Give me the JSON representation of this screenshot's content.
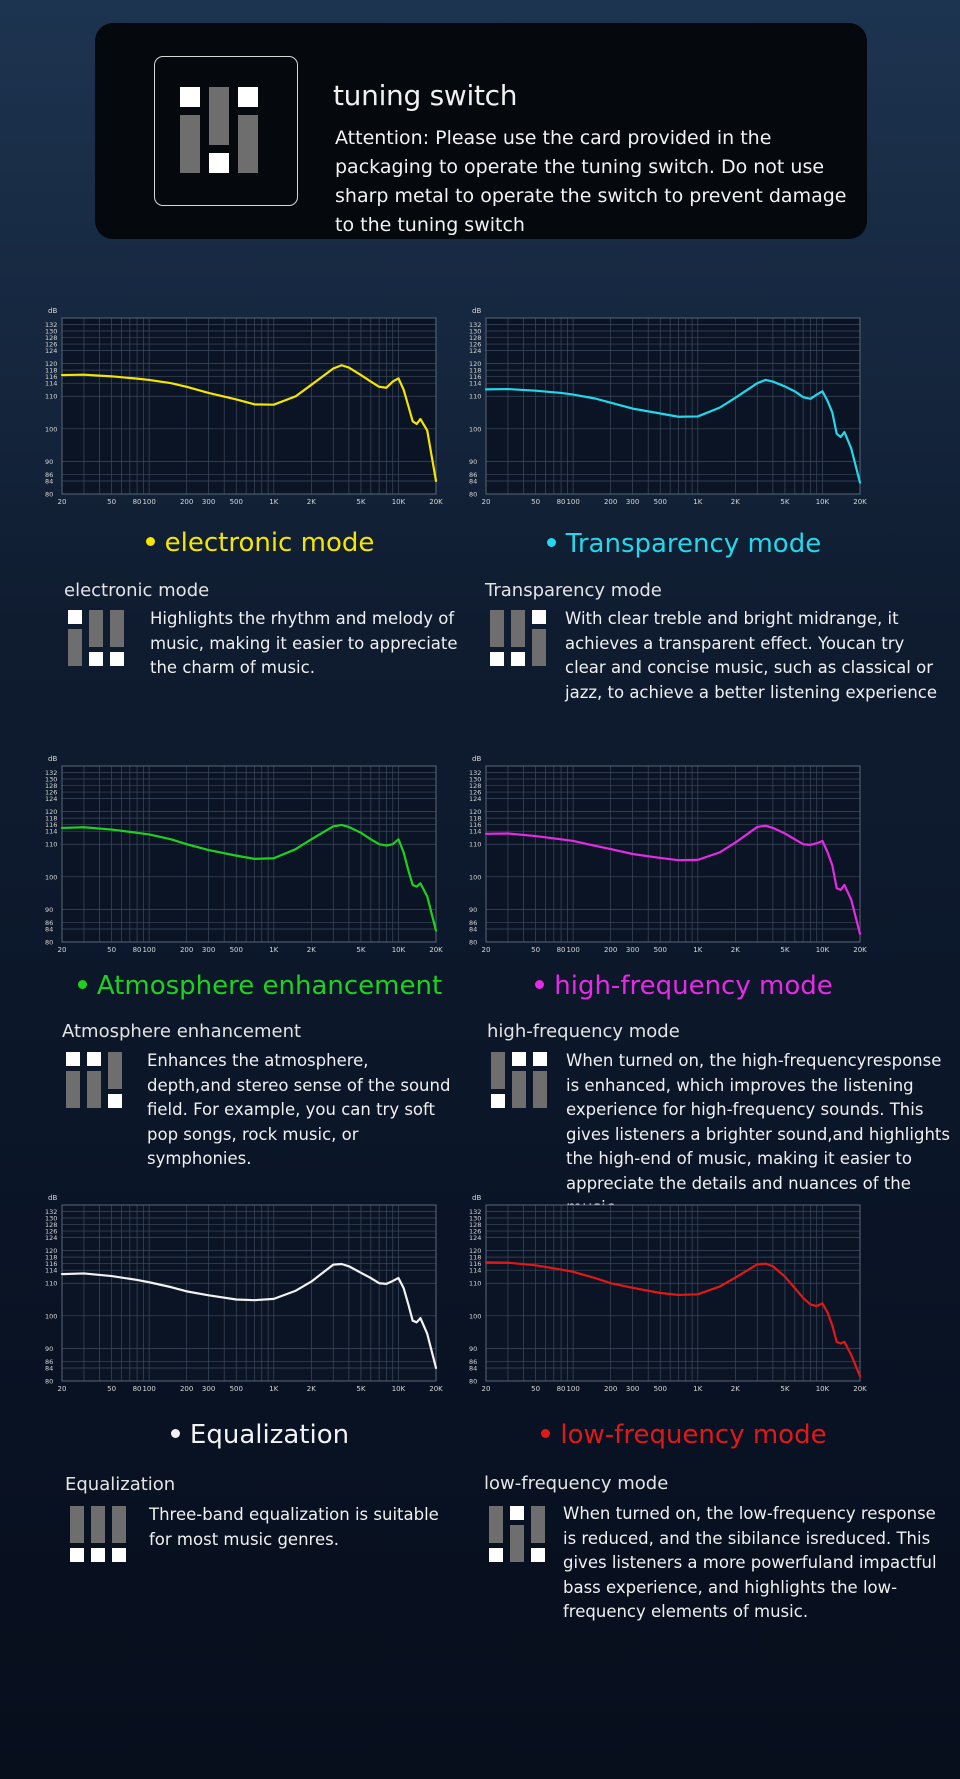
{
  "header": {
    "title": "tuning switch",
    "notice": "Attention: Please use the card provided in the packaging to operate the tuning switch. Do not use sharp metal to operate the switch to prevent damage to the tuning switch",
    "switch_states": [
      "up",
      "down",
      "up"
    ]
  },
  "axis": {
    "y_unit": "dB",
    "y_ticks": [
      "132",
      "130",
      "128",
      "126",
      "124",
      "120",
      "118",
      "116",
      "114",
      "110",
      "100",
      "90",
      "86",
      "84",
      "80"
    ],
    "x_ticks": [
      "20",
      "50",
      "80",
      "100",
      "200",
      "300",
      "500",
      "1K",
      "2K",
      "5K",
      "10K",
      "20K"
    ],
    "x_tick_values": [
      20,
      50,
      80,
      100,
      200,
      300,
      500,
      1000,
      2000,
      5000,
      10000,
      20000
    ]
  },
  "chart_data": [
    {
      "type": "line",
      "heading": "electronic mode",
      "subtitle": "electronic mode",
      "color": "#f5e600",
      "switch_states": [
        "up",
        "down",
        "down"
      ],
      "description": "Highlights the rhythm and melody of music, making it easier to appreciate the charm of music.",
      "series": [
        {
          "x": [
            20,
            30,
            50,
            80,
            100,
            150,
            200,
            300,
            500,
            700,
            1000,
            1500,
            2000,
            3000,
            3500,
            4000,
            5000,
            6000,
            7000,
            8000,
            9000,
            10000,
            11000,
            12000,
            13000,
            14000,
            15000,
            17000,
            20000
          ],
          "y": [
            116.5,
            116.6,
            116.1,
            115.4,
            115.0,
            114.0,
            112.9,
            111.0,
            109.0,
            107.5,
            107.4,
            110.0,
            113.5,
            118.5,
            119.5,
            118.8,
            116.5,
            114.5,
            112.9,
            112.6,
            114.5,
            115.5,
            112.0,
            107.0,
            102.3,
            101.5,
            103.0,
            99.5,
            84.0
          ]
        }
      ]
    },
    {
      "type": "line",
      "heading": "Transparency mode",
      "subtitle": "Transparency mode",
      "color": "#22d8ea",
      "switch_states": [
        "down",
        "down",
        "up"
      ],
      "description": "With clear treble and bright midrange, it achieves a transparent effect. Youcan try clear and concise music, such as classical or jazz, to achieve a better listening experience",
      "series": [
        {
          "x": [
            20,
            30,
            50,
            80,
            100,
            150,
            200,
            300,
            500,
            700,
            1000,
            1500,
            2000,
            3000,
            3500,
            4000,
            5000,
            6000,
            7000,
            8000,
            9000,
            10000,
            11000,
            12000,
            13000,
            14000,
            15000,
            17000,
            20000
          ],
          "y": [
            112.1,
            112.2,
            111.7,
            111.0,
            110.5,
            109.3,
            108.0,
            106.2,
            104.7,
            103.7,
            103.8,
            106.5,
            109.5,
            114.0,
            115.0,
            114.5,
            113.0,
            111.5,
            109.7,
            109.2,
            110.5,
            111.5,
            108.5,
            105.0,
            98.5,
            97.5,
            99.0,
            94.0,
            83.5
          ]
        }
      ]
    },
    {
      "type": "line",
      "heading": "Atmosphere enhancement",
      "subtitle": "Atmosphere enhancement",
      "color": "#1fd11f",
      "switch_states": [
        "up",
        "up",
        "down"
      ],
      "description": "Enhances the atmosphere, depth,and stereo sense of the sound field. For example, you can try soft pop songs, rock music, or symphonies.",
      "series": [
        {
          "x": [
            20,
            30,
            50,
            80,
            100,
            150,
            200,
            300,
            500,
            700,
            1000,
            1500,
            2000,
            3000,
            3500,
            4000,
            5000,
            6000,
            7000,
            8000,
            9000,
            10000,
            11000,
            12000,
            13000,
            14000,
            15000,
            17000,
            20000
          ],
          "y": [
            115.0,
            115.2,
            114.5,
            113.5,
            113.0,
            111.5,
            110.0,
            108.2,
            106.5,
            105.5,
            105.7,
            108.5,
            111.5,
            115.5,
            115.9,
            115.3,
            113.5,
            111.5,
            110.0,
            109.6,
            110.0,
            111.5,
            107.5,
            102.0,
            97.5,
            97.0,
            98.0,
            94.0,
            83.5
          ]
        }
      ]
    },
    {
      "type": "line",
      "heading": "high-frequency mode",
      "subtitle": "high-frequency mode",
      "color": "#e62ae6",
      "switch_states": [
        "down",
        "up",
        "up"
      ],
      "description": "When turned on, the high-frequencyresponse is enhanced, which improves the listening experience for high-frequency sounds. This gives listeners a brighter sound,and highlights the high-end of music, making it easier to appreciate the details and nuances of the music.",
      "series": [
        {
          "x": [
            20,
            30,
            50,
            80,
            100,
            150,
            200,
            300,
            500,
            700,
            1000,
            1500,
            2000,
            3000,
            3500,
            4000,
            5000,
            6000,
            7000,
            8000,
            9000,
            10000,
            11000,
            12000,
            13000,
            14000,
            15000,
            17000,
            20000
          ],
          "y": [
            113.2,
            113.3,
            112.5,
            111.5,
            111.0,
            109.5,
            108.5,
            107.0,
            105.8,
            105.1,
            105.2,
            107.5,
            110.5,
            115.3,
            115.7,
            115.0,
            113.3,
            111.5,
            110.0,
            109.8,
            110.3,
            111.0,
            107.5,
            103.5,
            96.5,
            96.0,
            97.5,
            93.0,
            82.5
          ]
        }
      ]
    },
    {
      "type": "line",
      "heading": "Equalization",
      "subtitle": "Equalization",
      "color": "#f2f2f2",
      "switch_states": [
        "down",
        "down",
        "down"
      ],
      "description": "Three-band equalization is suitable for most music genres.",
      "series": [
        {
          "x": [
            20,
            30,
            50,
            80,
            100,
            150,
            200,
            300,
            500,
            700,
            1000,
            1500,
            2000,
            3000,
            3500,
            4000,
            5000,
            6000,
            7000,
            8000,
            9000,
            10000,
            11000,
            12000,
            13000,
            14000,
            15000,
            17000,
            20000
          ],
          "y": [
            112.8,
            113.0,
            112.2,
            111.0,
            110.3,
            108.8,
            107.5,
            106.3,
            105.0,
            104.8,
            105.2,
            107.7,
            110.5,
            115.7,
            115.9,
            115.2,
            113.2,
            111.6,
            110.0,
            109.8,
            110.7,
            111.6,
            108.5,
            103.5,
            98.5,
            98.0,
            99.3,
            94.5,
            84.0
          ]
        }
      ]
    },
    {
      "type": "line",
      "heading": "low-frequency mode",
      "subtitle": "low-frequency mode",
      "color": "#e01818",
      "switch_states": [
        "down",
        "up",
        "down"
      ],
      "description": "When turned on, the low-frequency response is reduced, and the sibilance isreduced. This gives listeners a more powerfuland impactful bass experience, and highlights the low-frequency elements of music.",
      "series": [
        {
          "x": [
            20,
            30,
            50,
            80,
            100,
            150,
            200,
            300,
            500,
            700,
            1000,
            1500,
            2000,
            3000,
            3500,
            4000,
            5000,
            6000,
            7000,
            8000,
            9000,
            10000,
            11000,
            12000,
            13000,
            14000,
            15000,
            17000,
            20000
          ],
          "y": [
            116.4,
            116.3,
            115.5,
            114.2,
            113.5,
            111.6,
            110.0,
            108.6,
            107.0,
            106.4,
            106.6,
            109.0,
            111.7,
            115.8,
            116.0,
            115.2,
            112.0,
            108.5,
            105.5,
            103.5,
            103.0,
            103.8,
            101.0,
            97.0,
            92.0,
            91.5,
            92.0,
            88.0,
            81.5
          ]
        }
      ]
    }
  ]
}
